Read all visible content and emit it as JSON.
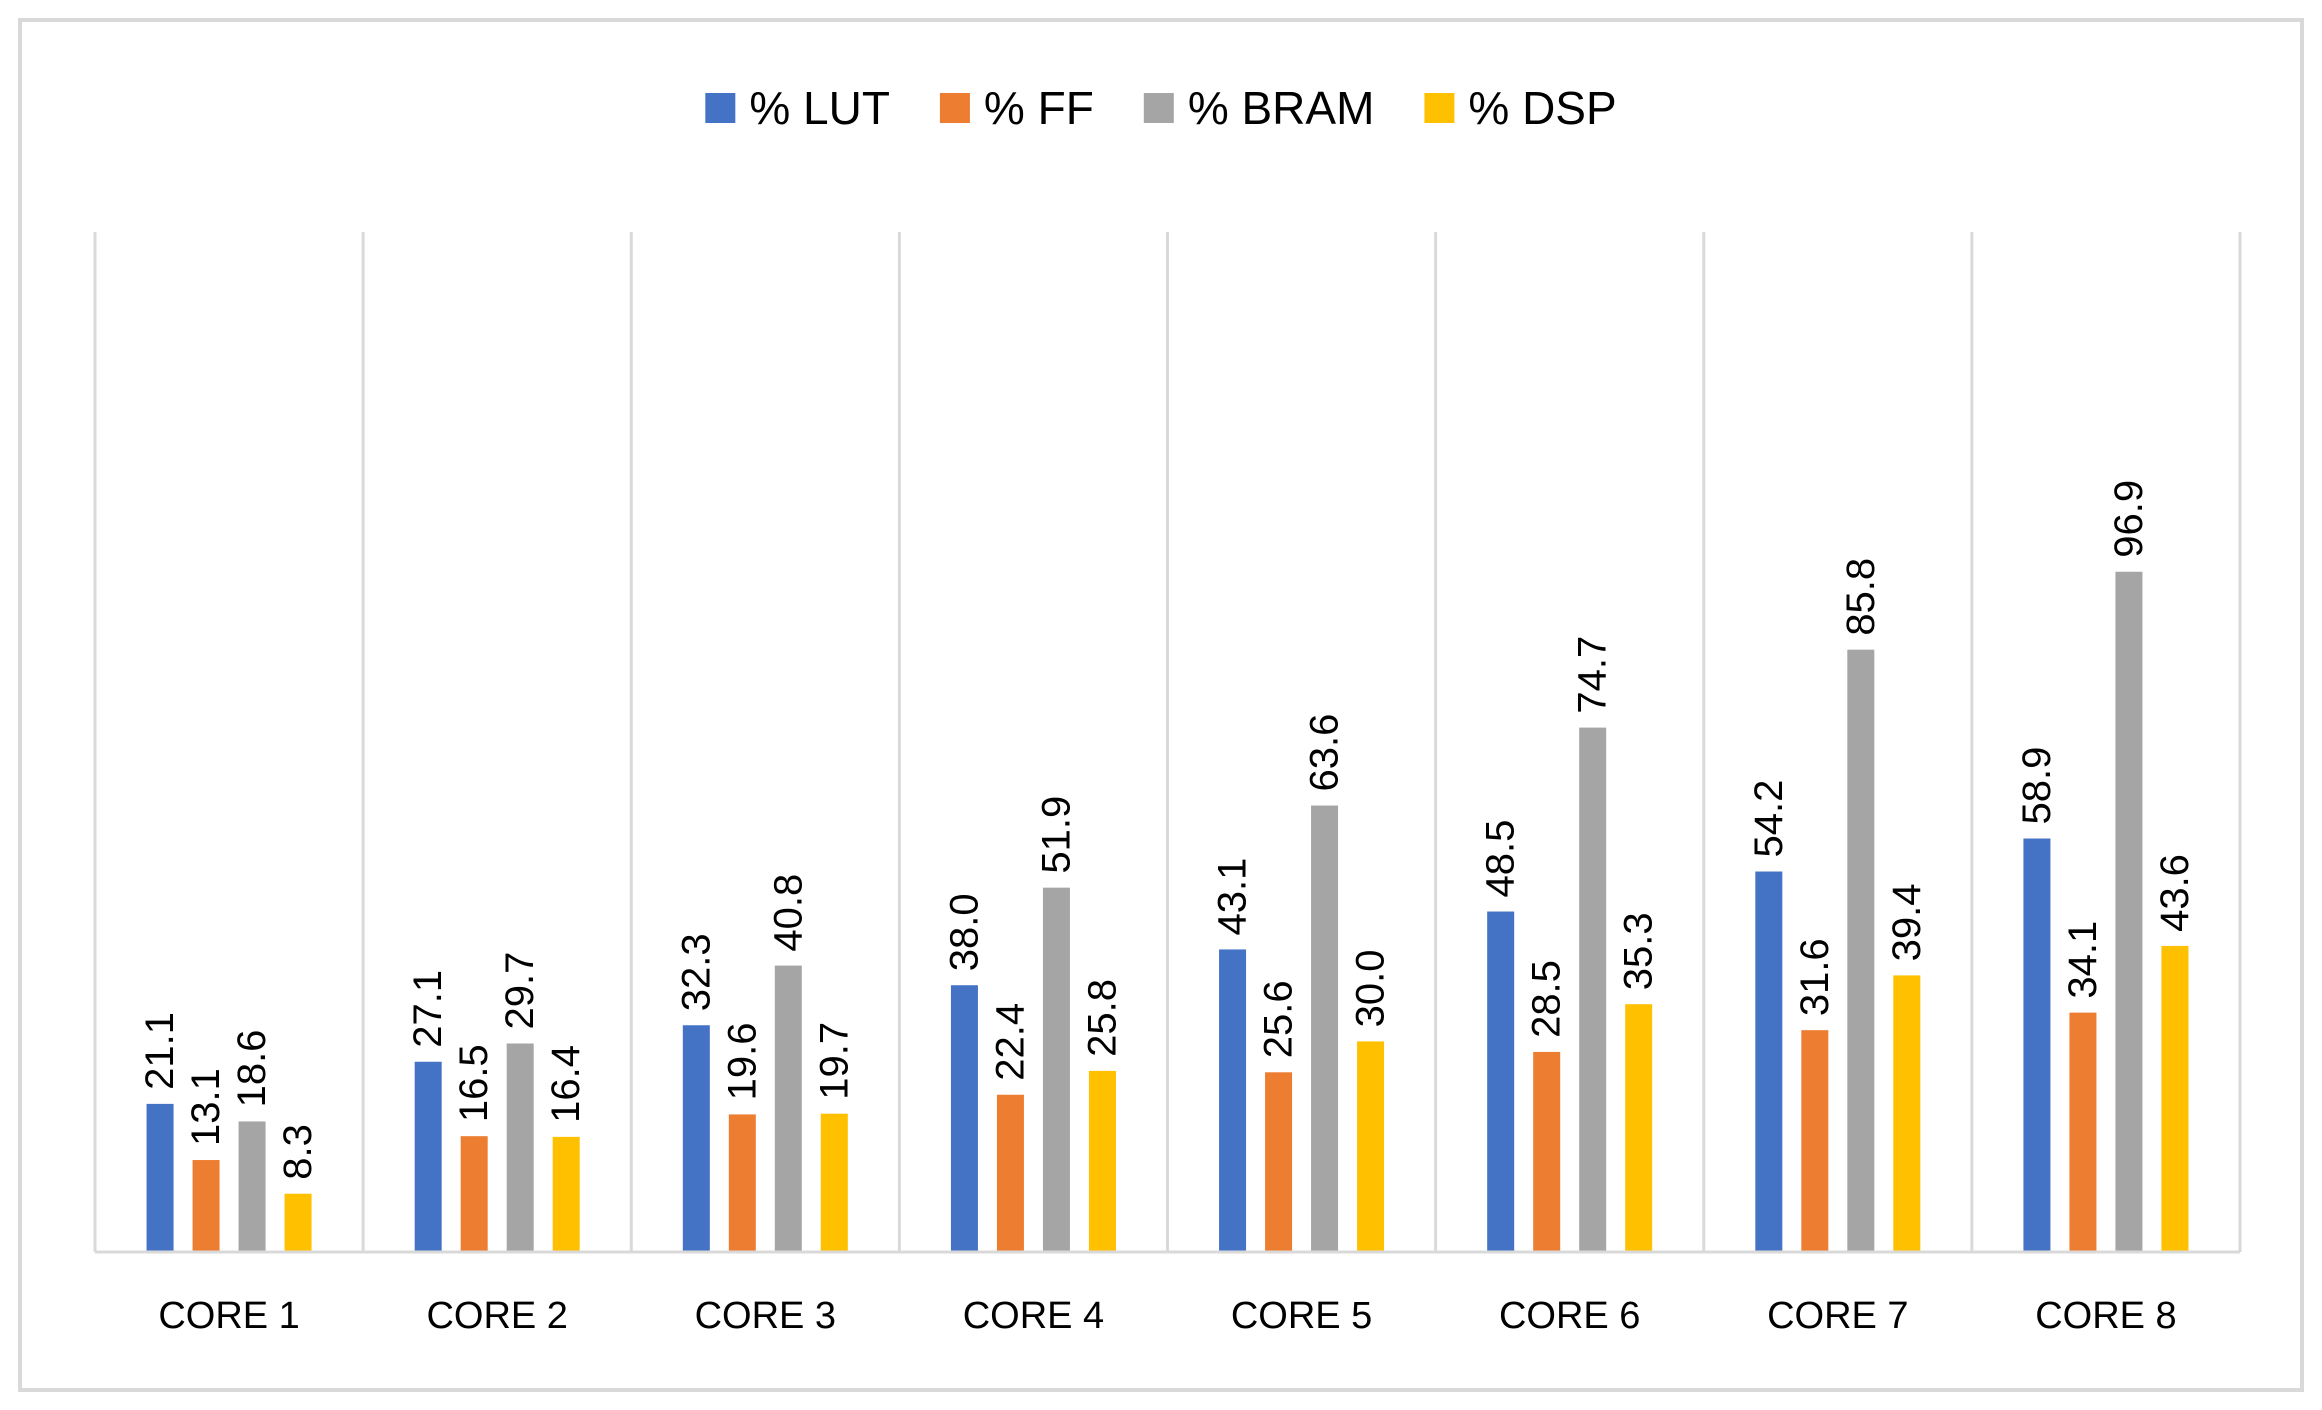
{
  "chart_data": {
    "type": "bar",
    "title": "",
    "xlabel": "",
    "ylabel": "",
    "ylim": [
      0,
      100
    ],
    "grid": "vertical separators between categories",
    "legend_position": "top",
    "categories": [
      "CORE 1",
      "CORE 2",
      "CORE 3",
      "CORE 4",
      "CORE 5",
      "CORE 6",
      "CORE 7",
      "CORE 8"
    ],
    "series": [
      {
        "name": "% LUT",
        "color": "#4472C4",
        "values": [
          21.1,
          27.1,
          32.3,
          38.0,
          43.1,
          48.5,
          54.2,
          58.9
        ]
      },
      {
        "name": "% FF",
        "color": "#ED7D31",
        "values": [
          13.1,
          16.5,
          19.6,
          22.4,
          25.6,
          28.5,
          31.6,
          34.1
        ]
      },
      {
        "name": "% BRAM",
        "color": "#A5A5A5",
        "values": [
          18.6,
          29.7,
          40.8,
          51.9,
          63.6,
          74.7,
          85.8,
          96.9
        ]
      },
      {
        "name": "% DSP",
        "color": "#FFC000",
        "values": [
          8.3,
          16.4,
          19.7,
          25.8,
          30.0,
          35.3,
          39.4,
          43.6
        ]
      }
    ]
  },
  "colors": {
    "gridline": "#D9D9D9",
    "axis": "#D9D9D9",
    "border": "#D9D9D9",
    "text": "#000000"
  }
}
